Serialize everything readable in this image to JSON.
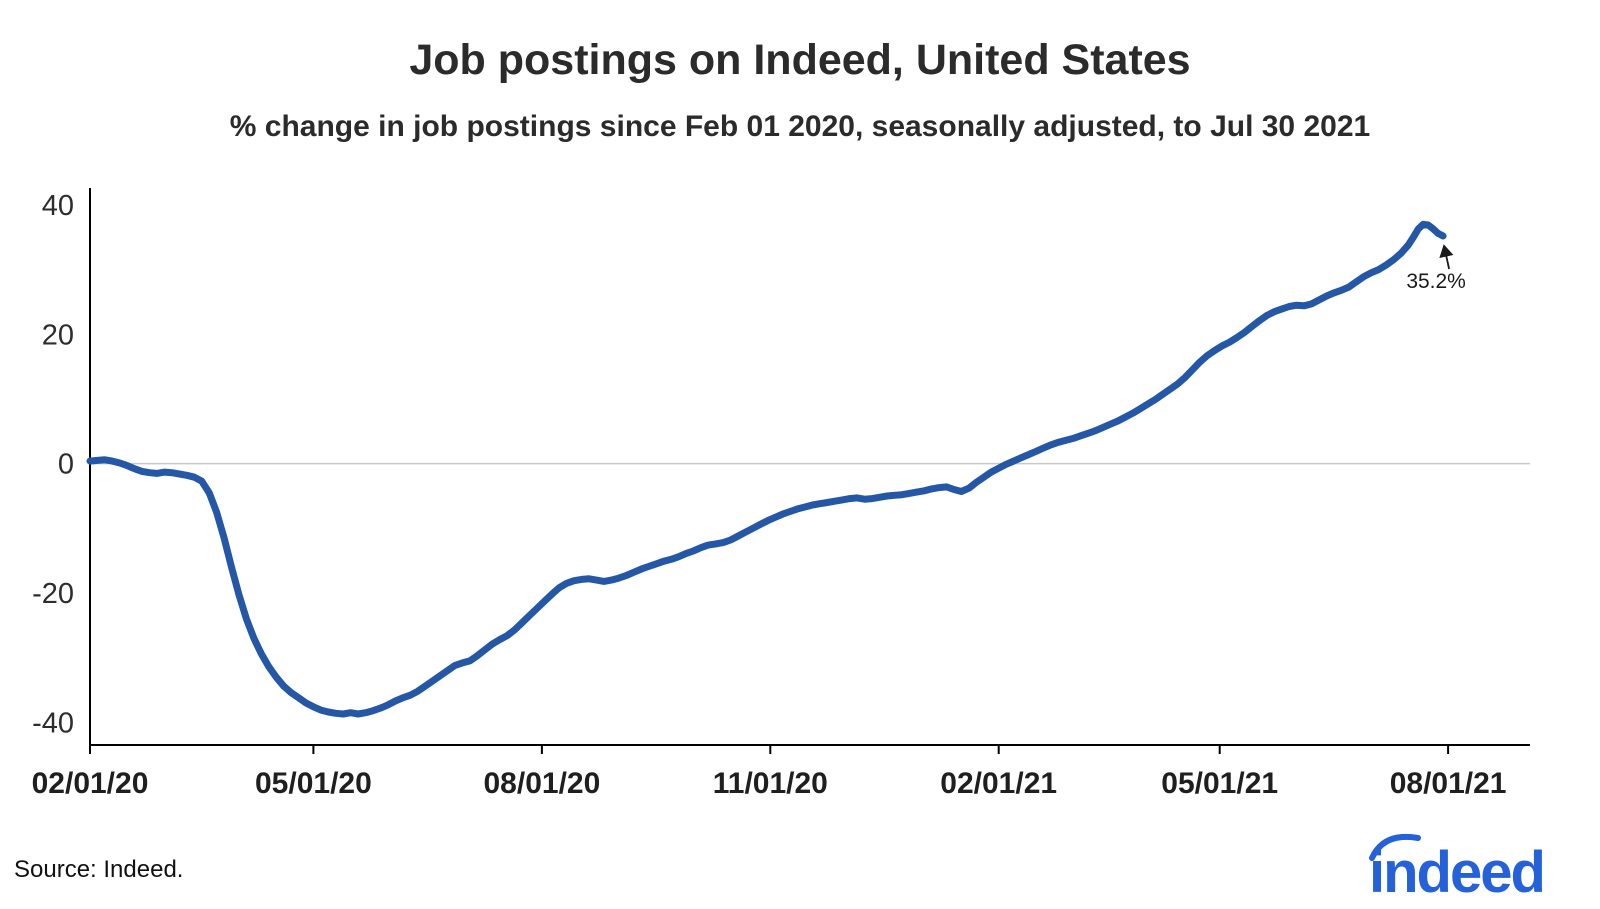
{
  "footer": {
    "source": "Source: Indeed.",
    "logo": "indeed"
  },
  "colors": {
    "line": "#2557a7",
    "zero_line": "#c9c9c9",
    "axis": "#000000",
    "text": "#2d2d2d",
    "logo": "#2562d9"
  },
  "chart_data": {
    "type": "line",
    "title": "Job postings on Indeed, United States",
    "subtitle": "% change in job postings since Feb 01 2020, seasonally adjusted, to Jul 30 2021",
    "xlabel": "",
    "ylabel": "",
    "x_unit": "days since 2020-02-01",
    "xlim": [
      0,
      580
    ],
    "ylim": [
      -43.5,
      42
    ],
    "y_ticks": [
      40,
      20,
      0,
      -20,
      -40
    ],
    "x_ticks": [
      {
        "x": 0,
        "label": "02/01/20"
      },
      {
        "x": 90,
        "label": "05/01/20"
      },
      {
        "x": 182,
        "label": "08/01/20"
      },
      {
        "x": 274,
        "label": "11/01/20"
      },
      {
        "x": 366,
        "label": "02/01/21"
      },
      {
        "x": 455,
        "label": "05/01/21"
      },
      {
        "x": 547,
        "label": "08/01/21"
      }
    ],
    "grid": "zero-line-only",
    "legend": "none",
    "annotation": {
      "label": "35.2%",
      "x": 545,
      "y": 35.2
    },
    "series": [
      {
        "name": "US job postings, % change since Feb 01 2020",
        "color": "#2557a7",
        "points": [
          [
            0,
            0.4
          ],
          [
            3,
            0.5
          ],
          [
            6,
            0.6
          ],
          [
            9,
            0.4
          ],
          [
            12,
            0.1
          ],
          [
            15,
            -0.3
          ],
          [
            18,
            -0.8
          ],
          [
            21,
            -1.2
          ],
          [
            24,
            -1.4
          ],
          [
            27,
            -1.5
          ],
          [
            30,
            -1.3
          ],
          [
            33,
            -1.4
          ],
          [
            36,
            -1.6
          ],
          [
            39,
            -1.8
          ],
          [
            42,
            -2.1
          ],
          [
            45,
            -2.7
          ],
          [
            48,
            -4.5
          ],
          [
            51,
            -7.5
          ],
          [
            54,
            -11.5
          ],
          [
            57,
            -16.0
          ],
          [
            60,
            -20.3
          ],
          [
            63,
            -24.0
          ],
          [
            66,
            -27.0
          ],
          [
            69,
            -29.4
          ],
          [
            72,
            -31.4
          ],
          [
            75,
            -33.0
          ],
          [
            78,
            -34.4
          ],
          [
            81,
            -35.4
          ],
          [
            84,
            -36.2
          ],
          [
            87,
            -37.0
          ],
          [
            90,
            -37.6
          ],
          [
            93,
            -38.1
          ],
          [
            96,
            -38.4
          ],
          [
            99,
            -38.6
          ],
          [
            102,
            -38.7
          ],
          [
            105,
            -38.5
          ],
          [
            108,
            -38.7
          ],
          [
            111,
            -38.5
          ],
          [
            114,
            -38.2
          ],
          [
            117,
            -37.8
          ],
          [
            120,
            -37.3
          ],
          [
            123,
            -36.7
          ],
          [
            126,
            -36.2
          ],
          [
            129,
            -35.8
          ],
          [
            132,
            -35.2
          ],
          [
            135,
            -34.4
          ],
          [
            138,
            -33.6
          ],
          [
            141,
            -32.8
          ],
          [
            144,
            -32.0
          ],
          [
            147,
            -31.2
          ],
          [
            150,
            -30.8
          ],
          [
            153,
            -30.5
          ],
          [
            156,
            -29.7
          ],
          [
            159,
            -28.8
          ],
          [
            162,
            -27.9
          ],
          [
            165,
            -27.2
          ],
          [
            168,
            -26.6
          ],
          [
            171,
            -25.7
          ],
          [
            174,
            -24.6
          ],
          [
            177,
            -23.5
          ],
          [
            180,
            -22.4
          ],
          [
            183,
            -21.3
          ],
          [
            186,
            -20.2
          ],
          [
            189,
            -19.2
          ],
          [
            192,
            -18.5
          ],
          [
            195,
            -18.1
          ],
          [
            198,
            -17.9
          ],
          [
            201,
            -17.8
          ],
          [
            204,
            -18.0
          ],
          [
            207,
            -18.2
          ],
          [
            210,
            -18.0
          ],
          [
            213,
            -17.7
          ],
          [
            216,
            -17.3
          ],
          [
            219,
            -16.8
          ],
          [
            222,
            -16.3
          ],
          [
            225,
            -15.9
          ],
          [
            228,
            -15.5
          ],
          [
            231,
            -15.1
          ],
          [
            234,
            -14.8
          ],
          [
            237,
            -14.4
          ],
          [
            240,
            -13.9
          ],
          [
            243,
            -13.5
          ],
          [
            246,
            -13.0
          ],
          [
            249,
            -12.6
          ],
          [
            252,
            -12.4
          ],
          [
            255,
            -12.2
          ],
          [
            258,
            -11.8
          ],
          [
            261,
            -11.2
          ],
          [
            264,
            -10.6
          ],
          [
            267,
            -10.0
          ],
          [
            270,
            -9.4
          ],
          [
            273,
            -8.8
          ],
          [
            276,
            -8.3
          ],
          [
            279,
            -7.8
          ],
          [
            282,
            -7.4
          ],
          [
            285,
            -7.0
          ],
          [
            288,
            -6.7
          ],
          [
            291,
            -6.4
          ],
          [
            294,
            -6.2
          ],
          [
            297,
            -6.0
          ],
          [
            300,
            -5.8
          ],
          [
            303,
            -5.6
          ],
          [
            306,
            -5.4
          ],
          [
            309,
            -5.3
          ],
          [
            312,
            -5.5
          ],
          [
            315,
            -5.4
          ],
          [
            318,
            -5.2
          ],
          [
            321,
            -5.0
          ],
          [
            324,
            -4.9
          ],
          [
            327,
            -4.8
          ],
          [
            330,
            -4.6
          ],
          [
            333,
            -4.4
          ],
          [
            336,
            -4.2
          ],
          [
            339,
            -3.9
          ],
          [
            342,
            -3.7
          ],
          [
            345,
            -3.6
          ],
          [
            348,
            -4.0
          ],
          [
            351,
            -4.3
          ],
          [
            354,
            -3.8
          ],
          [
            357,
            -2.9
          ],
          [
            360,
            -2.1
          ],
          [
            363,
            -1.3
          ],
          [
            366,
            -0.7
          ],
          [
            369,
            -0.1
          ],
          [
            372,
            0.4
          ],
          [
            375,
            0.9
          ],
          [
            378,
            1.4
          ],
          [
            381,
            1.9
          ],
          [
            384,
            2.4
          ],
          [
            387,
            2.9
          ],
          [
            390,
            3.3
          ],
          [
            393,
            3.6
          ],
          [
            396,
            3.9
          ],
          [
            399,
            4.3
          ],
          [
            402,
            4.7
          ],
          [
            405,
            5.1
          ],
          [
            408,
            5.6
          ],
          [
            411,
            6.1
          ],
          [
            414,
            6.6
          ],
          [
            417,
            7.2
          ],
          [
            420,
            7.8
          ],
          [
            423,
            8.5
          ],
          [
            426,
            9.2
          ],
          [
            429,
            9.9
          ],
          [
            432,
            10.7
          ],
          [
            435,
            11.5
          ],
          [
            438,
            12.3
          ],
          [
            441,
            13.3
          ],
          [
            444,
            14.5
          ],
          [
            447,
            15.7
          ],
          [
            450,
            16.7
          ],
          [
            453,
            17.5
          ],
          [
            456,
            18.2
          ],
          [
            459,
            18.8
          ],
          [
            462,
            19.5
          ],
          [
            465,
            20.3
          ],
          [
            468,
            21.2
          ],
          [
            471,
            22.1
          ],
          [
            474,
            22.9
          ],
          [
            477,
            23.5
          ],
          [
            480,
            23.9
          ],
          [
            483,
            24.3
          ],
          [
            486,
            24.5
          ],
          [
            489,
            24.4
          ],
          [
            492,
            24.7
          ],
          [
            495,
            25.3
          ],
          [
            498,
            25.9
          ],
          [
            501,
            26.4
          ],
          [
            504,
            26.8
          ],
          [
            507,
            27.3
          ],
          [
            510,
            28.1
          ],
          [
            513,
            28.9
          ],
          [
            516,
            29.5
          ],
          [
            519,
            30.0
          ],
          [
            522,
            30.7
          ],
          [
            525,
            31.5
          ],
          [
            528,
            32.5
          ],
          [
            531,
            33.8
          ],
          [
            533,
            35.0
          ],
          [
            535,
            36.3
          ],
          [
            537,
            37.0
          ],
          [
            539,
            36.9
          ],
          [
            541,
            36.3
          ],
          [
            543,
            35.6
          ],
          [
            545,
            35.2
          ]
        ]
      }
    ]
  }
}
